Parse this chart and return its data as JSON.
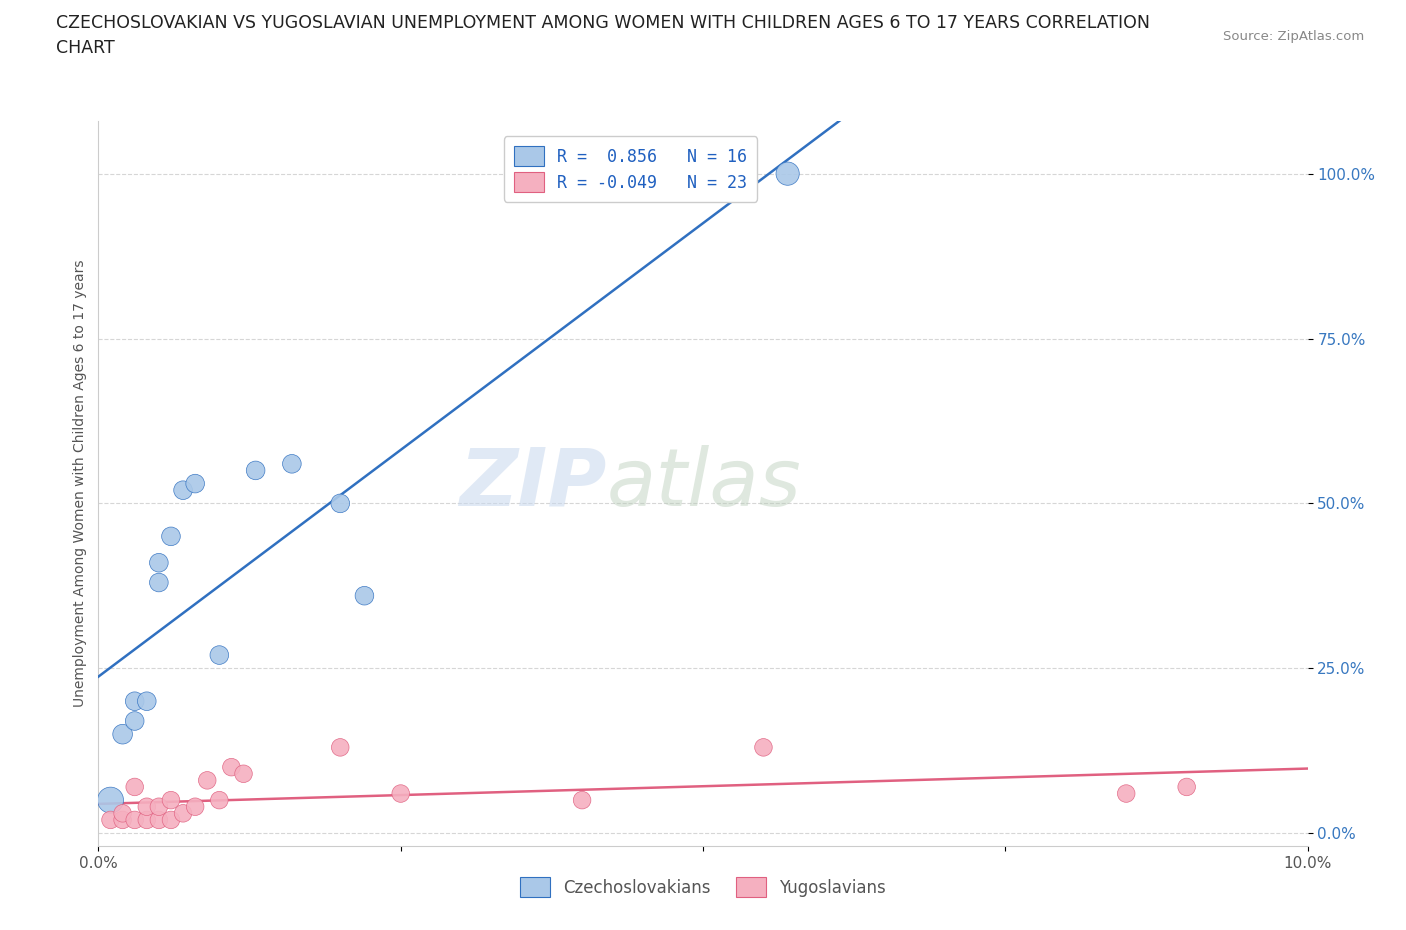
{
  "title_line1": "CZECHOSLOVAKIAN VS YUGOSLAVIAN UNEMPLOYMENT AMONG WOMEN WITH CHILDREN AGES 6 TO 17 YEARS CORRELATION",
  "title_line2": "CHART",
  "source": "Source: ZipAtlas.com",
  "ylabel": "Unemployment Among Women with Children Ages 6 to 17 years",
  "xlim": [
    0.0,
    0.1
  ],
  "ylim": [
    -0.02,
    1.08
  ],
  "yticks": [
    0.0,
    0.25,
    0.5,
    0.75,
    1.0
  ],
  "ytick_labels": [
    "0.0%",
    "25.0%",
    "50.0%",
    "75.0%",
    "100.0%"
  ],
  "xticks": [
    0.0,
    0.025,
    0.05,
    0.075,
    0.1
  ],
  "xtick_labels": [
    "0.0%",
    "",
    "",
    "",
    "10.0%"
  ],
  "czech_R": 0.856,
  "czech_N": 16,
  "yugo_R": -0.049,
  "yugo_N": 23,
  "czech_color": "#aac8e8",
  "yugo_color": "#f5b0c0",
  "czech_line_color": "#3070c0",
  "yugo_line_color": "#e06080",
  "czech_x": [
    0.001,
    0.002,
    0.003,
    0.003,
    0.004,
    0.005,
    0.005,
    0.006,
    0.007,
    0.008,
    0.01,
    0.013,
    0.016,
    0.02,
    0.022,
    0.057
  ],
  "czech_y": [
    0.05,
    0.15,
    0.17,
    0.2,
    0.2,
    0.38,
    0.41,
    0.45,
    0.52,
    0.53,
    0.27,
    0.55,
    0.56,
    0.5,
    0.36,
    1.0
  ],
  "czech_sizes": [
    350,
    200,
    180,
    180,
    180,
    180,
    180,
    180,
    180,
    180,
    180,
    180,
    180,
    180,
    180,
    280
  ],
  "yugo_x": [
    0.001,
    0.002,
    0.002,
    0.003,
    0.003,
    0.004,
    0.004,
    0.005,
    0.005,
    0.006,
    0.006,
    0.007,
    0.008,
    0.009,
    0.01,
    0.011,
    0.012,
    0.02,
    0.025,
    0.04,
    0.055,
    0.085,
    0.09
  ],
  "yugo_y": [
    0.02,
    0.02,
    0.03,
    0.02,
    0.07,
    0.02,
    0.04,
    0.02,
    0.04,
    0.02,
    0.05,
    0.03,
    0.04,
    0.08,
    0.05,
    0.1,
    0.09,
    0.13,
    0.06,
    0.05,
    0.13,
    0.06,
    0.07
  ],
  "yugo_sizes": [
    160,
    160,
    160,
    160,
    160,
    160,
    160,
    160,
    160,
    160,
    160,
    160,
    160,
    160,
    160,
    160,
    160,
    160,
    160,
    160,
    160,
    160,
    160
  ]
}
